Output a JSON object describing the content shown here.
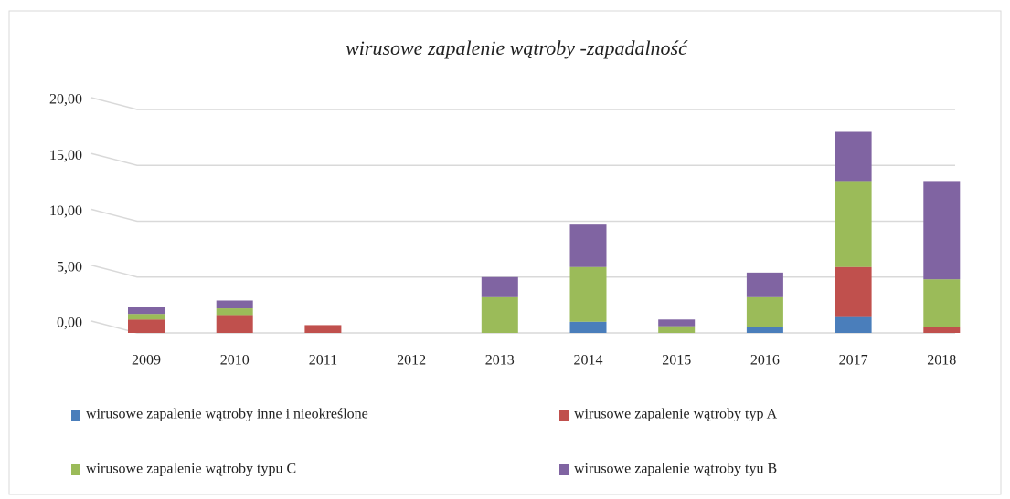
{
  "chart_data": {
    "type": "bar",
    "stacked": true,
    "title": "wirusowe zapalenie wątroby -zapadalność",
    "categories": [
      "2009",
      "2010",
      "2011",
      "2012",
      "2013",
      "2014",
      "2015",
      "2016",
      "2017",
      "2018"
    ],
    "series": [
      {
        "name": "wirusowe zapalenie wątroby inne i nieokreślone",
        "color": "#4a7ebb",
        "values": [
          0,
          0,
          0,
          0,
          0,
          1.0,
          0,
          0.5,
          1.5,
          0
        ]
      },
      {
        "name": "wirusowe zapalenie wątroby typ A",
        "color": "#c0504d",
        "values": [
          1.2,
          1.6,
          0.7,
          0,
          0,
          0,
          0,
          0,
          4.4,
          0.5
        ]
      },
      {
        "name": "wirusowe zapalenie wątroby typu C",
        "color": "#9bbb59",
        "values": [
          0.5,
          0.6,
          0,
          0,
          3.2,
          4.9,
          0.6,
          2.7,
          7.7,
          4.3
        ]
      },
      {
        "name": "wirusowe zapalenie wątroby tyu B",
        "color": "#8064a2",
        "values": [
          0.6,
          0.7,
          0,
          0,
          1.8,
          3.8,
          0.6,
          2.2,
          4.4,
          8.8
        ]
      }
    ],
    "ylim": [
      0,
      20
    ],
    "yticks": [
      {
        "value": 0,
        "label": "0,00"
      },
      {
        "value": 5,
        "label": "5,00"
      },
      {
        "value": 10,
        "label": "10,00"
      },
      {
        "value": 15,
        "label": "15,00"
      },
      {
        "value": 20,
        "label": "20,00"
      }
    ],
    "grid": true,
    "legend": "bottom"
  }
}
